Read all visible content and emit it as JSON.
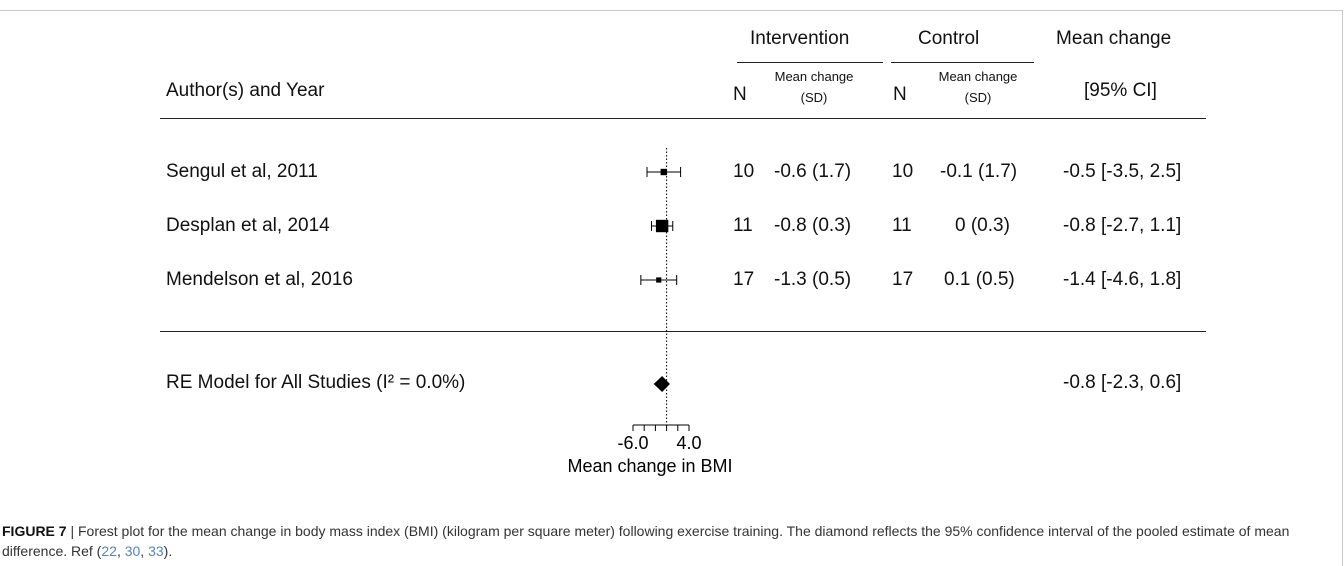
{
  "header": {
    "author_col": "Author(s) and Year",
    "intervention": "Intervention",
    "control": "Control",
    "mean_change_l1": "Mean change",
    "mean_change_l2": "[95% CI]",
    "n": "N",
    "sub_mc_l1": "Mean change",
    "sub_mc_l2": "(SD)"
  },
  "chart_data": {
    "type": "forest",
    "xlabel": "Mean change in BMI",
    "ticks": [
      "-6.0",
      "4.0"
    ],
    "xlim": [
      -6.0,
      4.0
    ],
    "reference_line": 0,
    "studies": [
      {
        "label": "Sengul et al, 2011",
        "n_int": "10",
        "mc_int": "-0.6 (1.7)",
        "n_ctl": "10",
        "mc_ctl": "-0.1 (1.7)",
        "ci_text": "-0.5 [-3.5, 2.5]",
        "estimate": -0.5,
        "lower": -3.5,
        "upper": 2.5,
        "weight": 0.2
      },
      {
        "label": "Desplan et al, 2014",
        "n_int": "11",
        "mc_int": "-0.8 (0.3)",
        "n_ctl": "11",
        "mc_ctl": "0 (0.3)",
        "ci_text": "-0.8 [-2.7, 1.1]",
        "estimate": -0.8,
        "lower": -2.7,
        "upper": 1.1,
        "weight": 0.7
      },
      {
        "label": "Mendelson et al, 2016",
        "n_int": "17",
        "mc_int": "-1.3 (0.5)",
        "n_ctl": "17",
        "mc_ctl": "0.1 (0.5)",
        "ci_text": "-1.4 [-4.6, 1.8]",
        "estimate": -1.4,
        "lower": -4.6,
        "upper": 1.8,
        "weight": 0.1
      }
    ],
    "summary": {
      "label": "RE Model for All Studies (I² = 0.0%)",
      "ci_text": "-0.8 [-2.3, 0.6]",
      "estimate": -0.8,
      "lower": -2.3,
      "upper": 0.6
    }
  },
  "caption": {
    "figure_label": "FIGURE 7",
    "text_before_refs": " | Forest plot for the mean change in body mass index (BMI) (kilogram per square meter) following exercise training. The diamond reflects the 95% confidence interval of the pooled estimate of mean difference. Ref (",
    "ref1": "22",
    "sep1": ", ",
    "ref2": "30",
    "sep2": ", ",
    "ref3": "33",
    "end": ")."
  }
}
